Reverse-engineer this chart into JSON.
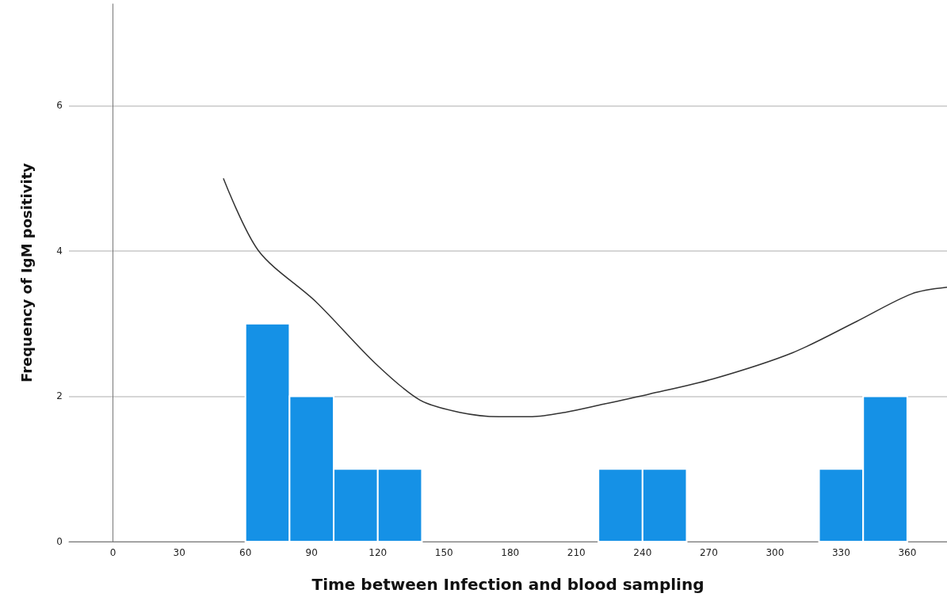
{
  "chart_data": {
    "type": "histogram",
    "xlabel": "Time between Infection and blood sampling",
    "ylabel": "Frequency of IgM positivity",
    "xlim": [
      -20,
      378
    ],
    "xticks": [
      0,
      30,
      60,
      90,
      120,
      150,
      180,
      210,
      240,
      270,
      300,
      330,
      360
    ],
    "ylim": [
      0,
      7.4
    ],
    "yticks": [
      0,
      2,
      4,
      6
    ],
    "grid": "y",
    "marker": "none",
    "series": [
      {
        "color": "#1591e6",
        "bins": [
          60,
          80,
          100,
          120,
          140,
          160,
          180,
          200,
          220,
          240,
          260,
          280,
          300,
          320,
          340,
          360
        ],
        "values": [
          3,
          2,
          1,
          1,
          0,
          0,
          0,
          0,
          1,
          1,
          0,
          0,
          0,
          1,
          2
        ]
      },
      {
        "type": "line",
        "color": "#333333",
        "x": [
          50,
          66,
          92,
          119,
          139,
          157,
          175,
          190,
          205,
          222,
          243,
          272,
          308,
          337,
          362,
          378
        ],
        "values": [
          5.0,
          4.0,
          3.3,
          2.45,
          1.95,
          1.78,
          1.72,
          1.72,
          1.78,
          1.89,
          2.03,
          2.24,
          2.6,
          3.03,
          3.41,
          3.5
        ]
      }
    ]
  }
}
